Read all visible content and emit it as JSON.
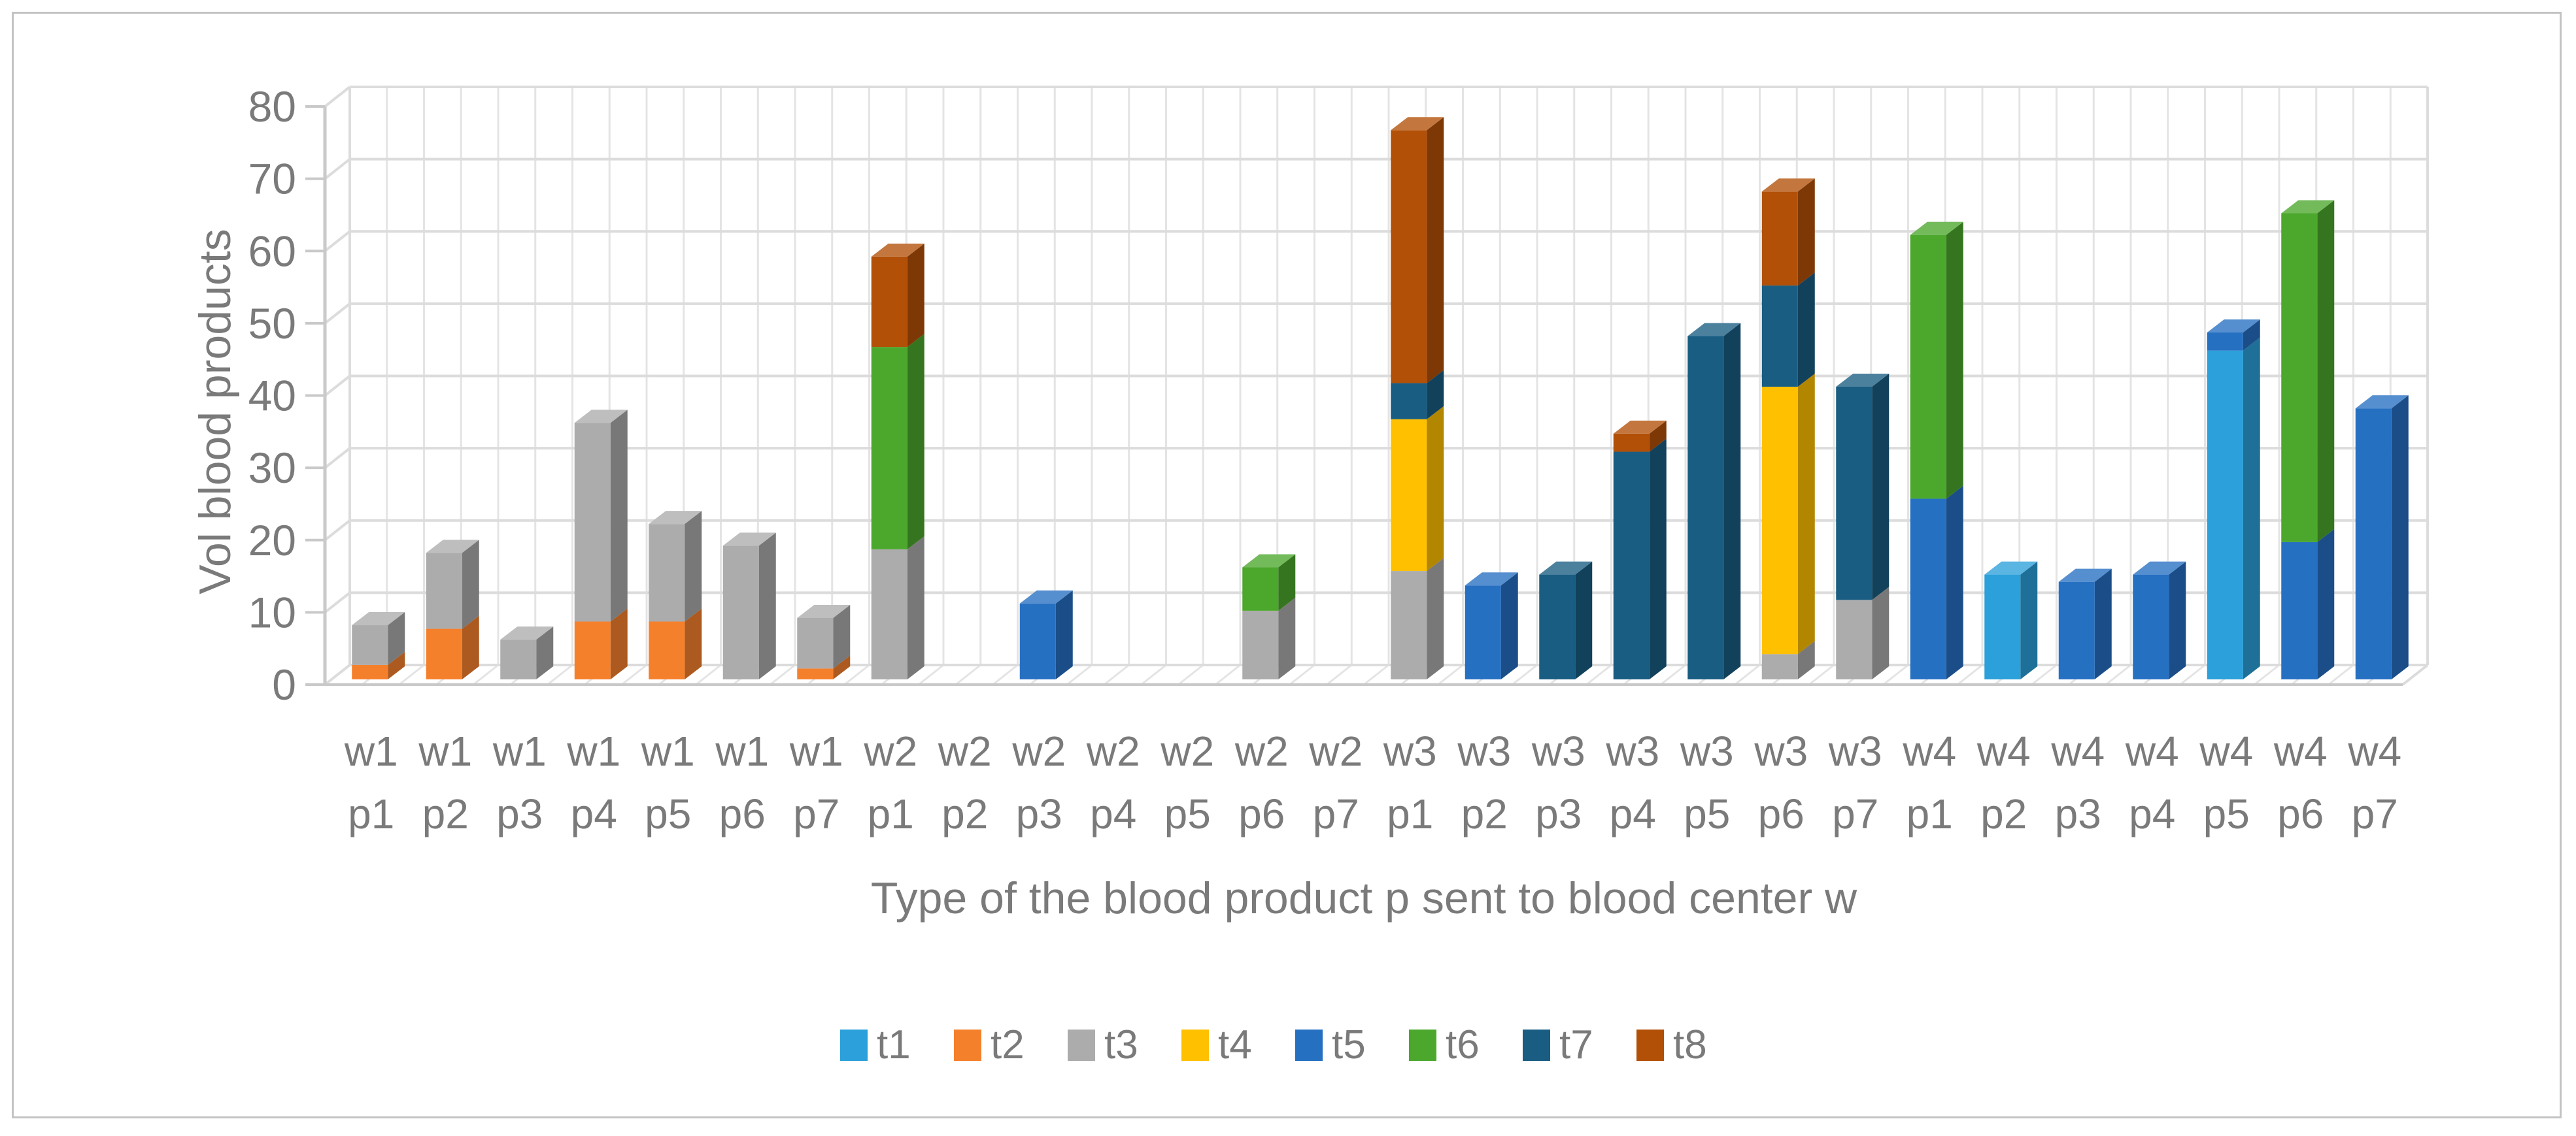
{
  "figure": {
    "background": "#FFFFFF",
    "border_color": "#C3C3C3",
    "text_color": "#7A7A7A",
    "grid_color": "#DCDCDC",
    "grid_color_light": "#E4E4E4",
    "axis_line_color": "#C9C9C9"
  },
  "chart_data": {
    "type": "bar",
    "stacked": true,
    "effect_3d": true,
    "title": "",
    "xlabel": "Type of the blood product p sent to blood center w",
    "ylabel": "Vol blood products",
    "ylim": [
      0,
      80
    ],
    "yticks": [
      "0",
      "10",
      "20",
      "30",
      "40",
      "50",
      "60",
      "70",
      "80"
    ],
    "grid": true,
    "legend_position": "bottom",
    "categories_top": [
      "w1",
      "w1",
      "w1",
      "w1",
      "w1",
      "w1",
      "w1",
      "w2",
      "w2",
      "w2",
      "w2",
      "w2",
      "w2",
      "w2",
      "w3",
      "w3",
      "w3",
      "w3",
      "w3",
      "w3",
      "w3",
      "w4",
      "w4",
      "w4",
      "w4",
      "w4",
      "w4",
      "w4"
    ],
    "categories_bottom": [
      "p1",
      "p2",
      "p3",
      "p4",
      "p5",
      "p6",
      "p7",
      "p1",
      "p2",
      "p3",
      "p4",
      "p5",
      "p6",
      "p7",
      "p1",
      "p2",
      "p3",
      "p4",
      "p5",
      "p6",
      "p7",
      "p1",
      "p2",
      "p3",
      "p4",
      "p5",
      "p6",
      "p7"
    ],
    "series": [
      {
        "name": "t1",
        "color": "#2BA0DA",
        "values": [
          0,
          0,
          0,
          0,
          0,
          0,
          0,
          0,
          0,
          0,
          0,
          0,
          0,
          0,
          0,
          0,
          0,
          0,
          0,
          0,
          0,
          0,
          14.5,
          0,
          0,
          45.5,
          0,
          0
        ]
      },
      {
        "name": "t2",
        "color": "#F5802C",
        "values": [
          2,
          7,
          0,
          8,
          8,
          0,
          1.5,
          0,
          0,
          0,
          0,
          0,
          0,
          0,
          0,
          0,
          0,
          0,
          0,
          0,
          0,
          0,
          0,
          0,
          0,
          0,
          0,
          0
        ]
      },
      {
        "name": "t3",
        "color": "#ACACAC",
        "values": [
          5.5,
          10.5,
          5.5,
          27.5,
          13.5,
          18.5,
          7,
          18,
          0,
          0,
          0,
          0,
          9.5,
          0,
          15,
          0,
          0,
          0,
          0,
          3.5,
          11,
          0,
          0,
          0,
          0,
          0,
          0,
          0
        ]
      },
      {
        "name": "t4",
        "color": "#FFC000",
        "values": [
          0,
          0,
          0,
          0,
          0,
          0,
          0,
          0,
          0,
          0,
          0,
          0,
          0,
          0,
          21,
          0,
          0,
          0,
          0,
          37,
          0,
          0,
          0,
          0,
          0,
          0,
          0,
          0
        ]
      },
      {
        "name": "t5",
        "color": "#2670C2",
        "values": [
          0,
          0,
          0,
          0,
          0,
          0,
          0,
          0,
          0,
          10.5,
          0,
          0,
          0,
          0,
          0,
          13,
          0,
          0,
          0,
          0,
          0,
          25,
          0,
          13.5,
          14.5,
          2.5,
          19,
          37.5
        ]
      },
      {
        "name": "t6",
        "color": "#4CA72D",
        "values": [
          0,
          0,
          0,
          0,
          0,
          0,
          0,
          28,
          0,
          0,
          0,
          0,
          6,
          0,
          0,
          0,
          0,
          0,
          0,
          0,
          0,
          36.5,
          0,
          0,
          0,
          0,
          45.5,
          0
        ]
      },
      {
        "name": "t7",
        "color": "#195D82",
        "values": [
          0,
          0,
          0,
          0,
          0,
          0,
          0,
          0,
          0,
          0,
          0,
          0,
          0,
          0,
          5,
          0,
          14.5,
          31.5,
          47.5,
          14,
          29.5,
          0,
          0,
          0,
          0,
          0,
          0,
          0
        ]
      },
      {
        "name": "t8",
        "color": "#B25008",
        "values": [
          0,
          0,
          0,
          0,
          0,
          0,
          0,
          12.5,
          0,
          0,
          0,
          0,
          0,
          0,
          35,
          0,
          0,
          2.5,
          0,
          13,
          0,
          0,
          0,
          0,
          0,
          0,
          0,
          0
        ]
      }
    ]
  }
}
